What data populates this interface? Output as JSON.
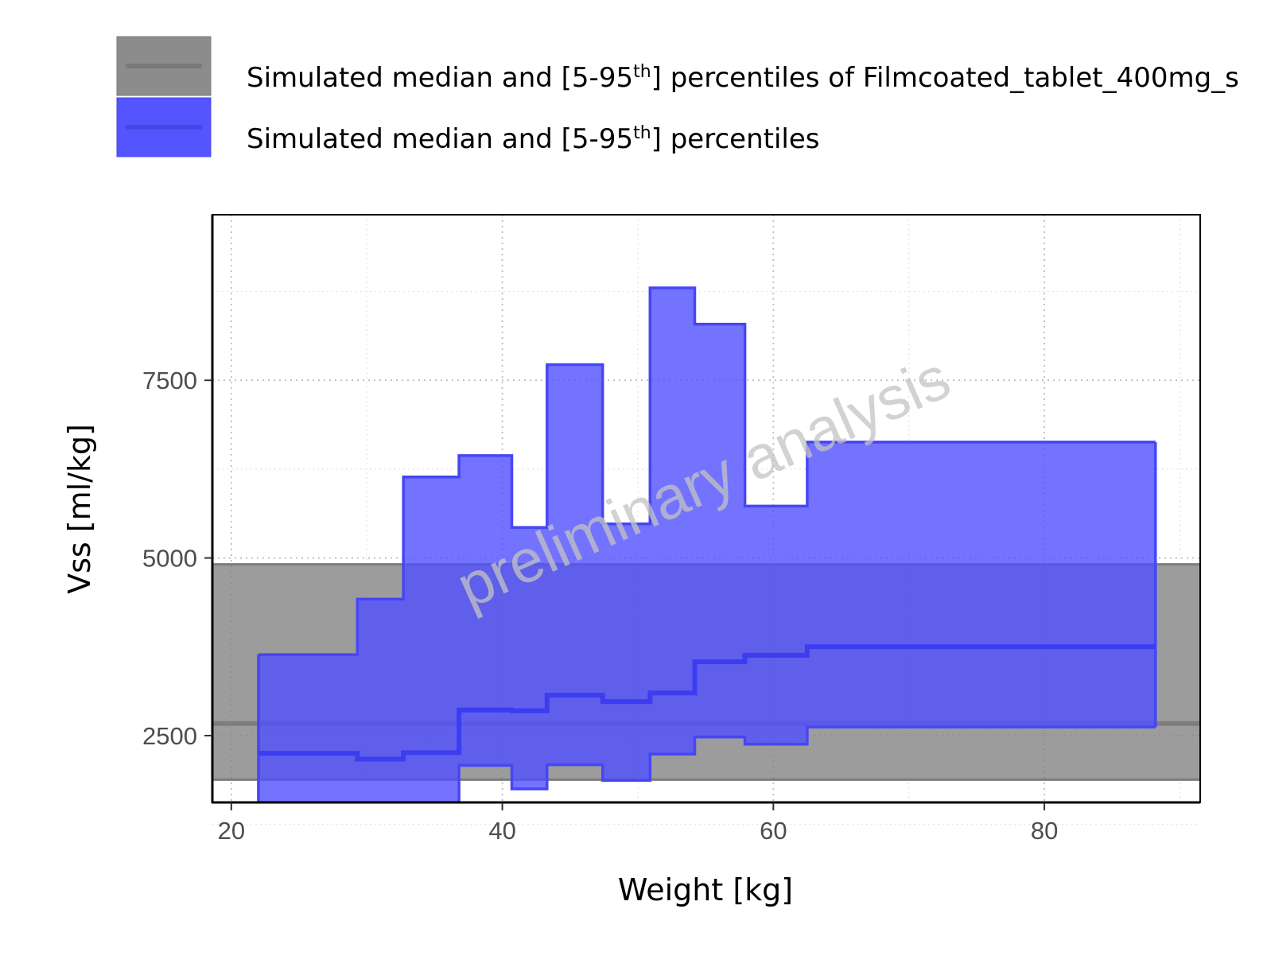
{
  "chart_data": {
    "type": "area",
    "xlabel": "Weight [kg]",
    "ylabel": "Vss [ml/kg]",
    "xlim": [
      18.6,
      91.5
    ],
    "ylim": [
      1560,
      9830
    ],
    "x_ticks": [
      20,
      40,
      60,
      80
    ],
    "x_tick_labels": [
      "20",
      "40",
      "60",
      "80"
    ],
    "y_ticks": [
      2500,
      5000,
      7500
    ],
    "y_tick_labels": [
      "2500",
      "5000",
      "7500"
    ],
    "y_minor_ticks": [
      1250,
      3750,
      6250,
      8750
    ],
    "x_minor_ticks": [
      30,
      50,
      70,
      90
    ],
    "grid": true,
    "legend_position": "top",
    "watermark": "preliminary analysis",
    "series": [
      {
        "name": "Simulated median and [5-95th] percentiles of Filmcoated_tablet_400mg_s",
        "legend_label": {
          "main": "Simulated median and [5-95",
          "sup": "th",
          "tail": "] percentiles of Filmcoated_tablet_400mg_s"
        },
        "kind": "constant_band",
        "color": "#808080",
        "x_range": [
          18.6,
          91.5
        ],
        "lower": 1880,
        "median": 2670,
        "upper": 4910
      },
      {
        "name": "Simulated median and [5-95th] percentiles",
        "legend_label": {
          "main": "Simulated median and [5-95",
          "sup": "th",
          "tail": "] percentiles"
        },
        "kind": "step_band",
        "color": "#5050ff",
        "x_edges": [
          22.0,
          29.3,
          32.7,
          36.8,
          40.7,
          43.3,
          47.4,
          50.9,
          54.2,
          57.9,
          62.5,
          88.2
        ],
        "lower": [
          1240,
          1390,
          1480,
          2080,
          1750,
          2090,
          1870,
          2240,
          2480,
          2380,
          2620
        ],
        "median": [
          2250,
          2170,
          2260,
          2860,
          2850,
          3070,
          2980,
          3100,
          3540,
          3630,
          3750
        ],
        "upper": [
          3640,
          4420,
          6140,
          6440,
          5430,
          7720,
          5480,
          8800,
          8290,
          5730,
          6630
        ]
      }
    ]
  }
}
